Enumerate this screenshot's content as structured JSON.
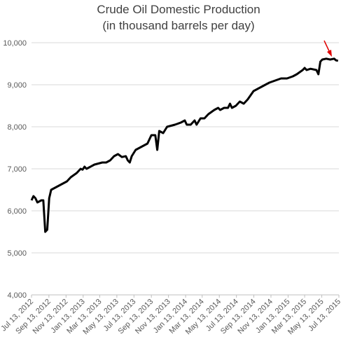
{
  "chart_data": {
    "type": "line",
    "title": "Crude Oil Domestic Production",
    "subtitle": "(in thousand barrels per day)",
    "color": "#000000",
    "grid": true,
    "xlim": [
      "2012-07-13",
      "2015-07-13"
    ],
    "xticks": [
      {
        "value": "2012-07-13",
        "label": "Jul 13, 2012"
      },
      {
        "value": "2012-09-13",
        "label": "Sep 13, 2012"
      },
      {
        "value": "2012-11-13",
        "label": "Nov 13, 2012"
      },
      {
        "value": "2013-01-13",
        "label": "Jan 13, 2013"
      },
      {
        "value": "2013-03-13",
        "label": "Mar 13, 2013"
      },
      {
        "value": "2013-05-13",
        "label": "May 13, 2013"
      },
      {
        "value": "2013-07-13",
        "label": "Jul 13, 2013"
      },
      {
        "value": "2013-09-13",
        "label": "Sep 13, 2013"
      },
      {
        "value": "2013-11-13",
        "label": "Nov 13, 2013"
      },
      {
        "value": "2014-01-13",
        "label": "Jan 13, 2014"
      },
      {
        "value": "2014-03-13",
        "label": "Mar 13, 2014"
      },
      {
        "value": "2014-05-13",
        "label": "May 13, 2014"
      },
      {
        "value": "2014-07-13",
        "label": "Jul 13, 2014"
      },
      {
        "value": "2014-09-13",
        "label": "Sep 13, 2014"
      },
      {
        "value": "2014-11-13",
        "label": "Nov 13, 2014"
      },
      {
        "value": "2015-01-13",
        "label": "Jan 13, 2015"
      },
      {
        "value": "2015-03-13",
        "label": "Mar 13, 2015"
      },
      {
        "value": "2015-05-13",
        "label": "May 13, 2015"
      },
      {
        "value": "2015-07-13",
        "label": "Jul 13, 2015"
      }
    ],
    "ylim": [
      4000,
      10000
    ],
    "yticks": [
      {
        "value": 4000,
        "label": "4,000"
      },
      {
        "value": 5000,
        "label": "5,000"
      },
      {
        "value": 6000,
        "label": "6,000"
      },
      {
        "value": 7000,
        "label": "7,000"
      },
      {
        "value": 8000,
        "label": "8,000"
      },
      {
        "value": 9000,
        "label": "9,000"
      },
      {
        "value": 10000,
        "label": "10,000"
      }
    ],
    "x": [
      "2012-07-13",
      "2012-07-20",
      "2012-07-27",
      "2012-08-03",
      "2012-08-17",
      "2012-08-24",
      "2012-08-31",
      "2012-09-07",
      "2012-09-14",
      "2012-09-21",
      "2012-10-05",
      "2012-10-19",
      "2012-11-16",
      "2012-11-30",
      "2012-12-21",
      "2013-01-04",
      "2013-01-11",
      "2013-01-18",
      "2013-01-25",
      "2013-02-22",
      "2013-03-22",
      "2013-04-05",
      "2013-04-19",
      "2013-05-03",
      "2013-05-17",
      "2013-05-31",
      "2013-06-14",
      "2013-06-21",
      "2013-06-28",
      "2013-07-05",
      "2013-07-19",
      "2013-08-02",
      "2013-08-16",
      "2013-08-30",
      "2013-09-06",
      "2013-09-13",
      "2013-09-27",
      "2013-10-04",
      "2013-10-11",
      "2013-10-25",
      "2013-11-08",
      "2013-12-06",
      "2013-12-27",
      "2014-01-10",
      "2014-01-17",
      "2014-01-31",
      "2014-02-14",
      "2014-02-21",
      "2014-03-07",
      "2014-03-21",
      "2014-04-04",
      "2014-04-25",
      "2014-05-09",
      "2014-05-16",
      "2014-05-30",
      "2014-06-13",
      "2014-06-20",
      "2014-06-27",
      "2014-07-11",
      "2014-07-25",
      "2014-08-08",
      "2014-08-22",
      "2014-09-12",
      "2014-09-26",
      "2014-10-10",
      "2014-10-24",
      "2014-11-07",
      "2014-11-28",
      "2014-12-19",
      "2015-01-09",
      "2015-01-30",
      "2015-02-13",
      "2015-03-06",
      "2015-03-13",
      "2015-03-20",
      "2015-04-03",
      "2015-04-24",
      "2015-05-01",
      "2015-05-08",
      "2015-05-15",
      "2015-05-29",
      "2015-06-12",
      "2015-06-26",
      "2015-07-03",
      "2015-07-10"
    ],
    "values": [
      6250,
      6350,
      6300,
      6200,
      6250,
      6250,
      5500,
      5550,
      6300,
      6500,
      6550,
      6600,
      6700,
      6800,
      6900,
      7000,
      6980,
      7050,
      7000,
      7100,
      7150,
      7150,
      7200,
      7300,
      7350,
      7280,
      7300,
      7200,
      7150,
      7300,
      7450,
      7500,
      7550,
      7600,
      7700,
      7800,
      7800,
      7450,
      7900,
      7850,
      8000,
      8050,
      8100,
      8150,
      8050,
      8050,
      8150,
      8050,
      8200,
      8200,
      8300,
      8400,
      8450,
      8400,
      8450,
      8450,
      8550,
      8450,
      8500,
      8600,
      8550,
      8650,
      8850,
      8900,
      8950,
      9000,
      9050,
      9100,
      9150,
      9150,
      9200,
      9250,
      9350,
      9400,
      9350,
      9380,
      9350,
      9250,
      9550,
      9600,
      9620,
      9600,
      9620,
      9580,
      9570
    ]
  }
}
